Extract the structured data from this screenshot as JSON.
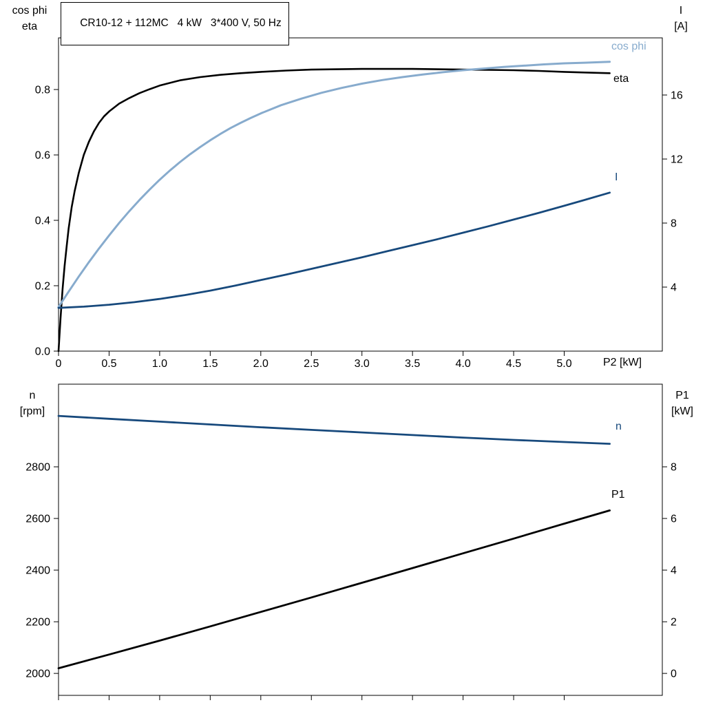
{
  "title": "CR10-12 + 112MC   4 kW   3*400 V, 50 Hz",
  "colors": {
    "black": "#000000",
    "light_blue": "#87abcd",
    "dark_blue": "#17497c",
    "frame": "#000000",
    "background": "#ffffff"
  },
  "chart_data": [
    {
      "type": "line",
      "name": "motor-electrical-curves",
      "x_axis": {
        "label": "P2 [kW]",
        "min": 0,
        "max": 5.97,
        "ticks": [
          0,
          0.5,
          1.0,
          1.5,
          2.0,
          2.5,
          3.0,
          3.5,
          4.0,
          4.5,
          5.0
        ],
        "tick_labels": [
          "0",
          "0.5",
          "1.0",
          "1.5",
          "2.0",
          "2.5",
          "3.0",
          "3.5",
          "4.0",
          "4.5",
          "5.0"
        ],
        "show_tick_labels": true
      },
      "left_axis": {
        "title_lines": [
          "cos phi",
          "eta"
        ],
        "min": 0,
        "max": 0.958,
        "ticks": [
          0.0,
          0.2,
          0.4,
          0.6,
          0.8
        ],
        "tick_labels": [
          "0.0",
          "0.2",
          "0.4",
          "0.6",
          "0.8"
        ]
      },
      "right_axis": {
        "title_lines": [
          "I",
          "[A]"
        ],
        "min": 0,
        "max": 19.57,
        "ticks": [
          4,
          8,
          12,
          16
        ],
        "tick_labels": [
          "4",
          "8",
          "12",
          "16"
        ]
      },
      "grid": false,
      "series": [
        {
          "name": "eta",
          "label": "eta",
          "axis": "left",
          "color": "#000000",
          "width": 2.6,
          "points": [
            [
              0,
              0
            ],
            [
              0.02,
              0.1
            ],
            [
              0.04,
              0.19
            ],
            [
              0.06,
              0.26
            ],
            [
              0.08,
              0.32
            ],
            [
              0.1,
              0.375
            ],
            [
              0.13,
              0.44
            ],
            [
              0.16,
              0.49
            ],
            [
              0.2,
              0.545
            ],
            [
              0.25,
              0.6
            ],
            [
              0.3,
              0.64
            ],
            [
              0.35,
              0.672
            ],
            [
              0.4,
              0.698
            ],
            [
              0.45,
              0.718
            ],
            [
              0.5,
              0.733
            ],
            [
              0.6,
              0.757
            ],
            [
              0.7,
              0.774
            ],
            [
              0.8,
              0.789
            ],
            [
              0.9,
              0.801
            ],
            [
              1.0,
              0.812
            ],
            [
              1.2,
              0.828
            ],
            [
              1.4,
              0.838
            ],
            [
              1.6,
              0.845
            ],
            [
              1.8,
              0.85
            ],
            [
              2.0,
              0.854
            ],
            [
              2.25,
              0.858
            ],
            [
              2.5,
              0.861
            ],
            [
              2.75,
              0.862
            ],
            [
              3.0,
              0.863
            ],
            [
              3.5,
              0.863
            ],
            [
              3.75,
              0.862
            ],
            [
              4.0,
              0.861
            ],
            [
              4.25,
              0.86
            ],
            [
              4.5,
              0.859
            ],
            [
              4.75,
              0.857
            ],
            [
              5.0,
              0.854
            ],
            [
              5.2,
              0.852
            ],
            [
              5.45,
              0.85
            ]
          ]
        },
        {
          "name": "cos-phi",
          "label": "cos phi",
          "axis": "left",
          "color": "#87abcd",
          "width": 3.0,
          "points": [
            [
              0,
              0.135
            ],
            [
              0.1,
              0.182
            ],
            [
              0.2,
              0.228
            ],
            [
              0.3,
              0.272
            ],
            [
              0.4,
              0.314
            ],
            [
              0.5,
              0.354
            ],
            [
              0.6,
              0.392
            ],
            [
              0.7,
              0.428
            ],
            [
              0.8,
              0.462
            ],
            [
              0.9,
              0.494
            ],
            [
              1.0,
              0.524
            ],
            [
              1.1,
              0.552
            ],
            [
              1.2,
              0.578
            ],
            [
              1.3,
              0.602
            ],
            [
              1.4,
              0.624
            ],
            [
              1.5,
              0.645
            ],
            [
              1.6,
              0.664
            ],
            [
              1.7,
              0.682
            ],
            [
              1.8,
              0.698
            ],
            [
              1.9,
              0.713
            ],
            [
              2.0,
              0.727
            ],
            [
              2.2,
              0.752
            ],
            [
              2.4,
              0.772
            ],
            [
              2.6,
              0.79
            ],
            [
              2.8,
              0.805
            ],
            [
              3.0,
              0.818
            ],
            [
              3.2,
              0.829
            ],
            [
              3.4,
              0.838
            ],
            [
              3.6,
              0.846
            ],
            [
              3.8,
              0.853
            ],
            [
              4.0,
              0.859
            ],
            [
              4.2,
              0.864
            ],
            [
              4.4,
              0.869
            ],
            [
              4.6,
              0.873
            ],
            [
              4.8,
              0.877
            ],
            [
              5.0,
              0.88
            ],
            [
              5.2,
              0.882
            ],
            [
              5.45,
              0.885
            ]
          ]
        },
        {
          "name": "current",
          "label": "I",
          "axis": "right",
          "color": "#17497c",
          "width": 2.8,
          "points": [
            [
              0,
              2.7
            ],
            [
              0.25,
              2.78
            ],
            [
              0.5,
              2.9
            ],
            [
              0.75,
              3.06
            ],
            [
              1.0,
              3.26
            ],
            [
              1.25,
              3.5
            ],
            [
              1.5,
              3.78
            ],
            [
              1.75,
              4.1
            ],
            [
              2.0,
              4.44
            ],
            [
              2.25,
              4.78
            ],
            [
              2.5,
              5.14
            ],
            [
              2.75,
              5.5
            ],
            [
              3.0,
              5.86
            ],
            [
              3.25,
              6.24
            ],
            [
              3.5,
              6.62
            ],
            [
              3.75,
              7.0
            ],
            [
              4.0,
              7.4
            ],
            [
              4.25,
              7.8
            ],
            [
              4.5,
              8.22
            ],
            [
              4.75,
              8.64
            ],
            [
              5.0,
              9.08
            ],
            [
              5.2,
              9.44
            ],
            [
              5.45,
              9.9
            ]
          ]
        }
      ]
    },
    {
      "type": "line",
      "name": "motor-speed-power-curves",
      "x_axis": {
        "label": "",
        "min": 0,
        "max": 5.97,
        "ticks": [
          0,
          0.5,
          1.0,
          1.5,
          2.0,
          2.5,
          3.0,
          3.5,
          4.0,
          4.5,
          5.0
        ],
        "tick_labels": [],
        "show_tick_labels": false
      },
      "left_axis": {
        "title_lines": [
          "n",
          "[rpm]"
        ],
        "min": 1915,
        "max": 3120,
        "ticks": [
          2000,
          2200,
          2400,
          2600,
          2800
        ],
        "tick_labels": [
          "2000",
          "2200",
          "2400",
          "2600",
          "2800"
        ]
      },
      "right_axis": {
        "title_lines": [
          "P1",
          "[kW]"
        ],
        "min": -0.85,
        "max": 11.2,
        "ticks": [
          0,
          2,
          4,
          6,
          8
        ],
        "tick_labels": [
          "0",
          "2",
          "4",
          "6",
          "8"
        ]
      },
      "grid": false,
      "series": [
        {
          "name": "speed",
          "label": "n",
          "axis": "left",
          "color": "#17497c",
          "width": 2.8,
          "points": [
            [
              0,
              2997
            ],
            [
              0.5,
              2986
            ],
            [
              1.0,
              2975
            ],
            [
              1.5,
              2964
            ],
            [
              2.0,
              2953
            ],
            [
              2.5,
              2943
            ],
            [
              3.0,
              2933
            ],
            [
              3.5,
              2923
            ],
            [
              4.0,
              2913
            ],
            [
              4.5,
              2904
            ],
            [
              5.0,
              2896
            ],
            [
              5.45,
              2889
            ]
          ]
        },
        {
          "name": "p1",
          "label": "P1",
          "axis": "right",
          "color": "#000000",
          "width": 2.8,
          "points": [
            [
              0,
              0.2
            ],
            [
              0.5,
              0.73
            ],
            [
              1.0,
              1.27
            ],
            [
              1.5,
              1.82
            ],
            [
              2.0,
              2.38
            ],
            [
              2.5,
              2.94
            ],
            [
              3.0,
              3.51
            ],
            [
              3.5,
              4.08
            ],
            [
              4.0,
              4.65
            ],
            [
              4.5,
              5.22
            ],
            [
              5.0,
              5.8
            ],
            [
              5.45,
              6.31
            ]
          ]
        }
      ]
    }
  ]
}
